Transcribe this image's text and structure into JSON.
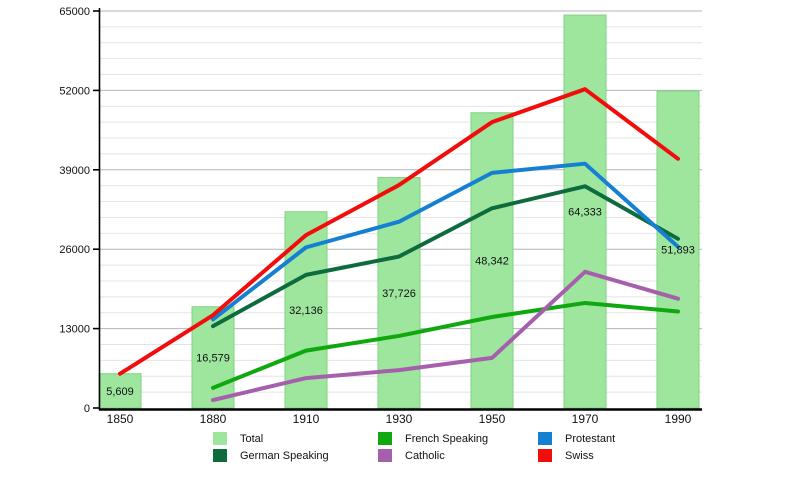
{
  "page": {
    "background": "#ffffff",
    "text_color": "#111111"
  },
  "chart_data": {
    "type": "bar",
    "subtype": "bar-with-line-overlays",
    "title": "",
    "xlabel": "",
    "ylabel": "",
    "categories": [
      "1850",
      "1880",
      "1910",
      "1930",
      "1950",
      "1970",
      "1990"
    ],
    "ylim": [
      0,
      65000
    ],
    "y_ticks": [
      "0",
      "13000",
      "26000",
      "39000",
      "52000",
      "65000"
    ],
    "y_major_step": 13000,
    "y_minor_step": 2600,
    "grid": true,
    "bars": {
      "name": "Total",
      "color": "#9ee59e",
      "border_color": "#7fd47f",
      "values": [
        5609,
        16579,
        32136,
        37726,
        48342,
        64333,
        51893
      ],
      "value_labels": [
        "5,609",
        "16,579",
        "32,136",
        "37,726",
        "48,342",
        "64,333",
        "51,893"
      ]
    },
    "series": [
      {
        "name": "German Speaking",
        "color": "#0d6b3d",
        "values": [
          null,
          13400,
          21800,
          24800,
          32700,
          36300,
          27700
        ]
      },
      {
        "name": "French Speaking",
        "color": "#0fa80f",
        "values": [
          null,
          3300,
          9400,
          11800,
          14900,
          17200,
          15800
        ]
      },
      {
        "name": "Catholic",
        "color": "#a55fad",
        "values": [
          null,
          1300,
          4900,
          6200,
          8200,
          22300,
          17900
        ]
      },
      {
        "name": "Protestant",
        "color": "#1580d2",
        "values": [
          null,
          14500,
          26300,
          30500,
          38500,
          40000,
          26400
        ]
      },
      {
        "name": "Swiss",
        "color": "#f20d0d",
        "values": [
          5609,
          15200,
          28300,
          36500,
          46800,
          52200,
          40800
        ]
      }
    ],
    "legend_position": "bottom",
    "legend_items": [
      {
        "label": "Total",
        "color": "#9ee59e"
      },
      {
        "label": "French Speaking",
        "color": "#0fa80f"
      },
      {
        "label": "Protestant",
        "color": "#1580d2"
      },
      {
        "label": "German Speaking",
        "color": "#0d6b3d"
      },
      {
        "label": "Catholic",
        "color": "#a55fad"
      },
      {
        "label": "Swiss",
        "color": "#f20d0d"
      }
    ],
    "axis_color": "#000000",
    "major_grid_color": "#b4b4b4",
    "minor_grid_color": "#e4e4e4"
  }
}
